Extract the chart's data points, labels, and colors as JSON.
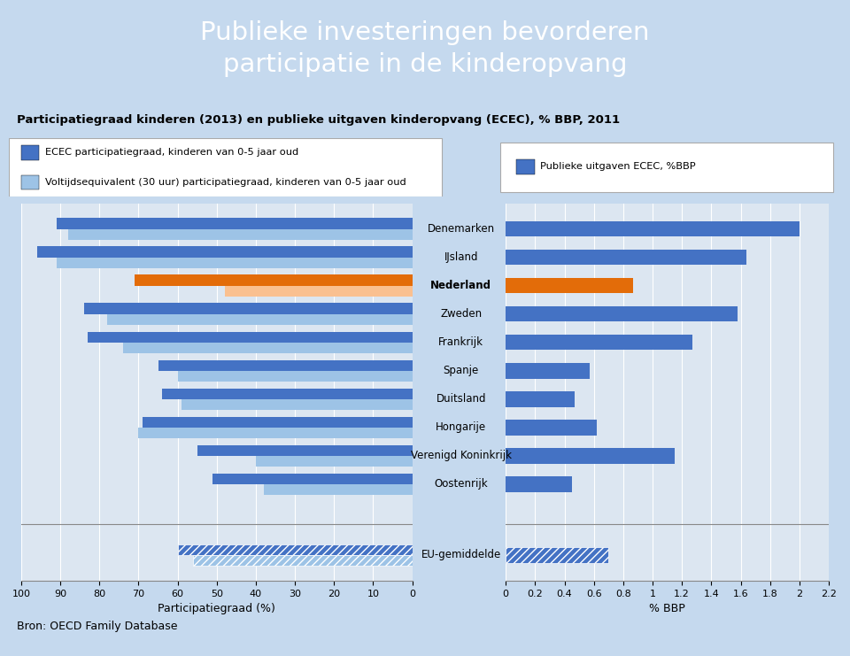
{
  "title_main": "Publieke investeringen bevorderen\nparticipatie in de kinderopvang",
  "subtitle": "Participatiegraad kinderen (2013) en publieke uitgaven kinderopvang (ECEC), % BBP, 2011",
  "legend_left1": "ECEC participatiegraad, kinderen van 0-5 jaar oud",
  "legend_left2": "Voltijdsequivalent (30 uur) participatiegraad, kinderen van 0-5 jaar oud",
  "legend_right": "Publieke uitgaven ECEC, %BBP",
  "xlabel_left": "Participatiegraad (%)",
  "xlabel_right": "% BBP",
  "source": "Bron: OECD Family Database",
  "countries": [
    "Denemarken",
    "IJsland",
    "Nederland",
    "Zweden",
    "Frankrijk",
    "Spanje",
    "Duitsland",
    "Hongarije",
    "Verenigd Koninkrijk",
    "Oostenrijk",
    "EU-gemiddelde"
  ],
  "ecec_participation": [
    91,
    96,
    71,
    84,
    83,
    65,
    64,
    69,
    55,
    51,
    60
  ],
  "fte_participation": [
    88,
    91,
    48,
    78,
    74,
    60,
    59,
    70,
    40,
    38,
    56
  ],
  "bbp": [
    2.0,
    1.64,
    0.87,
    1.58,
    1.27,
    0.57,
    0.47,
    0.62,
    1.15,
    0.45,
    0.7
  ],
  "highlight_country": "Nederland",
  "highlight_idx": 2,
  "eu_idx": 10,
  "color_dark_blue": "#4472C4",
  "color_light_blue": "#9DC3E6",
  "color_orange_dark": "#E36C09",
  "color_orange_light": "#FAC090",
  "color_bbp_blue": "#4472C4",
  "color_bbp_orange": "#E36C09",
  "color_header_bg": "#17607F",
  "color_chart_bg": "#DCE6F1",
  "color_outer_bg": "#C5D9EE",
  "color_panel_bg": "#D9E4F0"
}
